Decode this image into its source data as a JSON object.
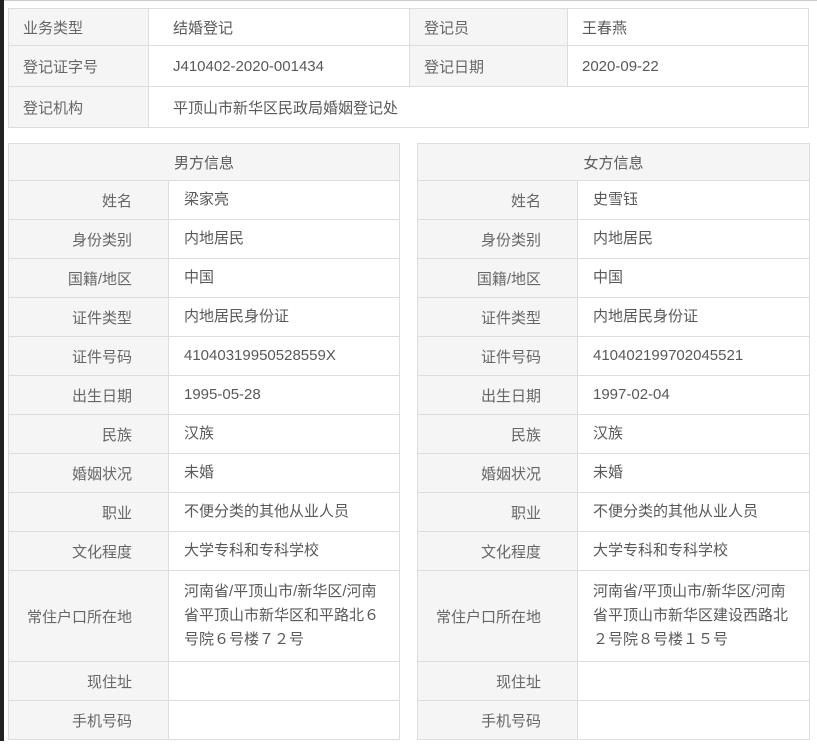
{
  "page": {
    "colors": {
      "label_bg": "#f5f5f5",
      "border": "#dddddd",
      "text": "#595959",
      "left_edge": "#222222"
    }
  },
  "summary": {
    "row1": {
      "label1": "业务类型",
      "value1": "结婚登记",
      "label2": "登记员",
      "value2": "王春燕"
    },
    "row2": {
      "label1": "登记证字号",
      "value1": "J410402-2020-001434",
      "label2": "登记日期",
      "value2": "2020-09-22"
    },
    "row3": {
      "label": "登记机构",
      "value": "平顶山市新华区民政局婚姻登记处"
    }
  },
  "male": {
    "title": "男方信息",
    "fields": [
      {
        "label": "姓名",
        "value": "梁家亮"
      },
      {
        "label": "身份类别",
        "value": "内地居民"
      },
      {
        "label": "国籍/地区",
        "value": "中国"
      },
      {
        "label": "证件类型",
        "value": "内地居民身份证"
      },
      {
        "label": "证件号码",
        "value": "41040319950528559X"
      },
      {
        "label": "出生日期",
        "value": "1995-05-28"
      },
      {
        "label": "民族",
        "value": "汉族"
      },
      {
        "label": "婚姻状况",
        "value": "未婚"
      },
      {
        "label": "职业",
        "value": "不便分类的其他从业人员"
      },
      {
        "label": "文化程度",
        "value": "大学专科和专科学校"
      },
      {
        "label": "常住户口所在地",
        "value": "河南省/平顶山市/新华区/河南省平顶山市新华区和平路北６号院６号楼７２号"
      },
      {
        "label": "现住址",
        "value": ""
      },
      {
        "label": "手机号码",
        "value": ""
      }
    ]
  },
  "female": {
    "title": "女方信息",
    "fields": [
      {
        "label": "姓名",
        "value": "史雪钰"
      },
      {
        "label": "身份类别",
        "value": "内地居民"
      },
      {
        "label": "国籍/地区",
        "value": "中国"
      },
      {
        "label": "证件类型",
        "value": "内地居民身份证"
      },
      {
        "label": "证件号码",
        "value": "410402199702045521"
      },
      {
        "label": "出生日期",
        "value": "1997-02-04"
      },
      {
        "label": "民族",
        "value": "汉族"
      },
      {
        "label": "婚姻状况",
        "value": "未婚"
      },
      {
        "label": "职业",
        "value": "不便分类的其他从业人员"
      },
      {
        "label": "文化程度",
        "value": "大学专科和专科学校"
      },
      {
        "label": "常住户口所在地",
        "value": "河南省/平顶山市/新华区/河南省平顶山市新华区建设西路北２号院８号楼１５号"
      },
      {
        "label": "现住址",
        "value": ""
      },
      {
        "label": "手机号码",
        "value": ""
      }
    ]
  }
}
